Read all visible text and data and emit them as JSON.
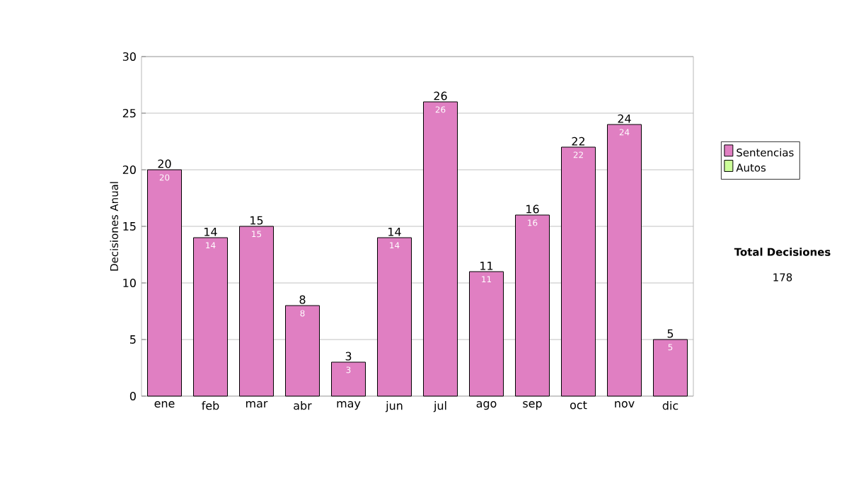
{
  "chart_data": {
    "type": "bar",
    "stacked": true,
    "ylabel": "Decisiones Anual",
    "categories": [
      "ene",
      "feb",
      "mar",
      "abr",
      "may",
      "jun",
      "jul",
      "ago",
      "sep",
      "oct",
      "nov",
      "dic"
    ],
    "series": [
      {
        "name": "Sentencias",
        "color": "#e07fc2",
        "values": [
          20,
          14,
          15,
          8,
          3,
          14,
          26,
          11,
          16,
          22,
          24,
          5
        ],
        "value_labels": [
          "20",
          "14",
          "15",
          "8",
          "3",
          "14",
          "26",
          "11",
          "16",
          "22",
          "24",
          "5"
        ]
      },
      {
        "name": "Autos",
        "color": "#ccff99",
        "values": [
          0,
          0,
          0,
          0,
          0,
          0,
          0,
          0,
          0,
          0,
          0,
          0
        ]
      }
    ],
    "totals": [
      "20",
      "14",
      "15",
      "8",
      "3",
      "14",
      "26",
      "11",
      "16",
      "22",
      "24",
      "5"
    ],
    "ylim": [
      0,
      30
    ],
    "yticks": [
      0,
      5,
      10,
      15,
      20,
      25,
      30
    ],
    "grid": "y",
    "legend": "right",
    "annotations": [
      "Total Decisiones",
      "178"
    ]
  }
}
